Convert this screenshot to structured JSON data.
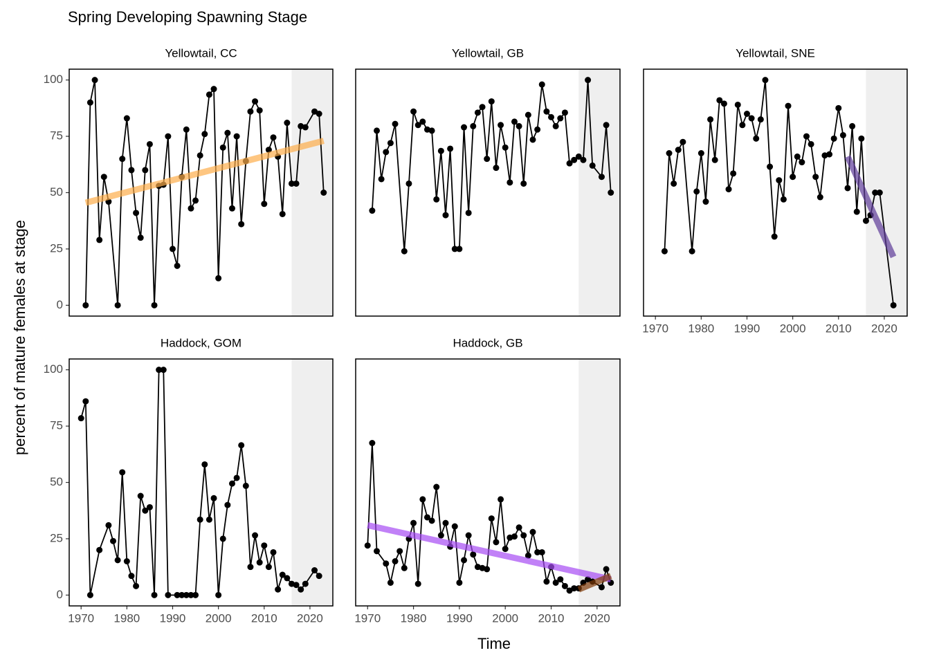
{
  "chart_data": {
    "type": "line",
    "title": "Spring Developing Spawning Stage",
    "x_label": "Time",
    "y_label": "percent of mature females at stage",
    "xlim": [
      1967.4,
      2025
    ],
    "ylim": [
      -4.8,
      104.8
    ],
    "xticks": [
      1970,
      1980,
      1990,
      2000,
      2010,
      2020
    ],
    "yticks": [
      0,
      25,
      50,
      75,
      100
    ],
    "shade": [
      2016,
      2025
    ],
    "shade_color": "#efefef",
    "line_color": "#000000",
    "panels": [
      {
        "title": "Yellowtail, CC",
        "x": [
          1971,
          1972,
          1973,
          1974,
          1975,
          1976,
          1978,
          1979,
          1980,
          1981,
          1982,
          1983,
          1984,
          1985,
          1986,
          1987,
          1988,
          1989,
          1990,
          1991,
          1992,
          1993,
          1994,
          1995,
          1996,
          1997,
          1998,
          1999,
          2000,
          2001,
          2002,
          2003,
          2004,
          2005,
          2006,
          2007,
          2008,
          2009,
          2010,
          2011,
          2012,
          2013,
          2014,
          2015,
          2016,
          2017,
          2018,
          2019,
          2021,
          2022,
          2023
        ],
        "values": [
          0,
          90,
          100,
          29,
          57,
          46,
          0,
          65,
          83,
          60,
          41,
          30,
          60,
          71.5,
          0,
          53,
          53.5,
          75,
          25,
          17.5,
          57,
          78,
          43,
          46.5,
          66.5,
          76,
          93.5,
          96,
          12,
          70,
          76.5,
          43,
          75,
          36,
          64,
          86,
          90.5,
          86.5,
          45,
          69,
          74.5,
          66,
          40.5,
          81,
          54,
          54,
          79.5,
          79,
          86,
          85,
          50
        ],
        "trends": [
          {
            "color": "#fdae4b",
            "x": [
              1971,
              2023
            ],
            "values": [
              45.5,
              73
            ]
          }
        ]
      },
      {
        "title": "Yellowtail, GB",
        "x": [
          1971,
          1972,
          1973,
          1974,
          1975,
          1976,
          1978,
          1979,
          1980,
          1981,
          1982,
          1983,
          1984,
          1985,
          1986,
          1987,
          1988,
          1989,
          1990,
          1991,
          1992,
          1993,
          1994,
          1995,
          1996,
          1997,
          1998,
          1999,
          2000,
          2001,
          2002,
          2003,
          2004,
          2005,
          2006,
          2007,
          2008,
          2009,
          2010,
          2011,
          2012,
          2013,
          2014,
          2015,
          2016,
          2017,
          2018,
          2019,
          2021,
          2022,
          2023
        ],
        "values": [
          42,
          77.5,
          56,
          68,
          72,
          80.5,
          24,
          54,
          86,
          80,
          81.5,
          78,
          77.5,
          47,
          68.5,
          40,
          69.5,
          25,
          25,
          79,
          41,
          79.5,
          85.5,
          88,
          65,
          90.5,
          61,
          80,
          70,
          54.5,
          81.5,
          79.5,
          54,
          84.5,
          73.5,
          78,
          98,
          86,
          83.5,
          79.5,
          83,
          85.5,
          63,
          64.5,
          66,
          64.5,
          100,
          62,
          57,
          80,
          50
        ],
        "trends": []
      },
      {
        "title": "Yellowtail, SNE",
        "x": [
          1972,
          1973,
          1974,
          1975,
          1976,
          1978,
          1979,
          1980,
          1981,
          1982,
          1983,
          1984,
          1985,
          1986,
          1987,
          1988,
          1989,
          1990,
          1991,
          1992,
          1993,
          1994,
          1995,
          1996,
          1997,
          1998,
          1999,
          2000,
          2001,
          2002,
          2003,
          2004,
          2005,
          2006,
          2007,
          2008,
          2009,
          2010,
          2011,
          2012,
          2013,
          2014,
          2015,
          2016,
          2017,
          2018,
          2019,
          2022
        ],
        "values": [
          24,
          67.5,
          54,
          69,
          72.5,
          24,
          50.5,
          67.5,
          46,
          82.5,
          64.5,
          91,
          89.5,
          51.5,
          58.5,
          89,
          80,
          85,
          83,
          74,
          82.5,
          100,
          61.5,
          30.5,
          55.5,
          47,
          88.5,
          57,
          66,
          63.5,
          75,
          71.5,
          57,
          48,
          66.5,
          67,
          74,
          87.5,
          75.5,
          52,
          79.5,
          41.5,
          74,
          37.5,
          40,
          50,
          50,
          0
        ],
        "trends": [
          {
            "color": "#5e3c99",
            "x": [
              2012,
              2022
            ],
            "values": [
              66,
              21.5
            ]
          }
        ]
      },
      {
        "title": "Haddock, GOM",
        "x": [
          1970,
          1971,
          1972,
          1974,
          1976,
          1977,
          1978,
          1979,
          1980,
          1981,
          1982,
          1983,
          1984,
          1985,
          1986,
          1987,
          1988,
          1989,
          1991,
          1992,
          1993,
          1994,
          1995,
          1996,
          1997,
          1998,
          1999,
          2000,
          2001,
          2002,
          2003,
          2004,
          2005,
          2006,
          2007,
          2008,
          2009,
          2010,
          2011,
          2012,
          2013,
          2014,
          2015,
          2016,
          2017,
          2018,
          2019,
          2021,
          2022
        ],
        "values": [
          78.5,
          86,
          0,
          20,
          31,
          24,
          15.5,
          54.5,
          15,
          8.5,
          4,
          44,
          37.5,
          39,
          0,
          100,
          100,
          0,
          0,
          0,
          0,
          0,
          0,
          33.5,
          58,
          33.5,
          43,
          0,
          25,
          40,
          49.5,
          52,
          66.5,
          48.5,
          12.5,
          26.5,
          14.5,
          22,
          12.5,
          19,
          2.5,
          9,
          7.5,
          5,
          4.5,
          2.5,
          5,
          11,
          8.5
        ],
        "trends": []
      },
      {
        "title": "Haddock, GB",
        "x": [
          1970,
          1971,
          1972,
          1974,
          1975,
          1976,
          1977,
          1978,
          1979,
          1980,
          1981,
          1982,
          1983,
          1984,
          1985,
          1986,
          1987,
          1988,
          1989,
          1990,
          1991,
          1992,
          1993,
          1994,
          1995,
          1996,
          1997,
          1998,
          1999,
          2000,
          2001,
          2002,
          2003,
          2004,
          2005,
          2006,
          2007,
          2008,
          2009,
          2010,
          2011,
          2012,
          2013,
          2014,
          2015,
          2016,
          2017,
          2018,
          2019,
          2021,
          2022,
          2023
        ],
        "values": [
          22,
          67.5,
          19.5,
          14,
          5.5,
          15,
          19.5,
          12,
          25,
          32,
          5,
          42.5,
          34.5,
          33,
          48,
          26.5,
          32,
          21.5,
          30.5,
          5.5,
          15.5,
          26.5,
          18,
          12.5,
          12,
          11.5,
          34,
          23.5,
          42.5,
          20.5,
          25.5,
          26,
          30,
          26.5,
          17.5,
          28,
          19,
          19,
          6,
          12.5,
          5.5,
          7,
          4,
          2,
          3,
          3,
          5.5,
          7,
          6,
          3.5,
          11.5,
          5.5
        ],
        "trends": [
          {
            "color": "#a64bf4",
            "x": [
              1970,
              2023
            ],
            "values": [
              31,
              7
            ]
          },
          {
            "color": "#7f3b08",
            "x": [
              2016,
              2023
            ],
            "values": [
              2.5,
              8.5
            ]
          }
        ]
      }
    ]
  }
}
